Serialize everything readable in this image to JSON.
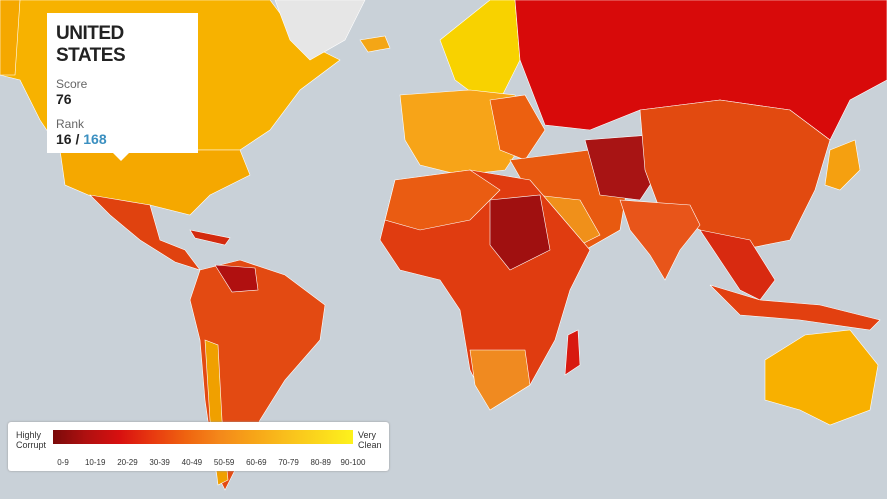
{
  "tooltip": {
    "country": "UNITED STATES",
    "score_label": "Score",
    "score": "76",
    "rank_label": "Rank",
    "rank": "16",
    "separator": "/",
    "total": "168"
  },
  "legend": {
    "low": "Highly Corrupt",
    "high": "Very Clean",
    "ranges": [
      "0-9",
      "10-19",
      "20-29",
      "30-39",
      "40-49",
      "50-59",
      "60-69",
      "70-79",
      "80-89",
      "90-100"
    ],
    "colors": [
      "#7a0a0a",
      "#b01010",
      "#d81010",
      "#e83a10",
      "#ef6410",
      "#f4881a",
      "#f7a418",
      "#f9bf1c",
      "#fbd81c",
      "#fdf21c"
    ]
  }
}
